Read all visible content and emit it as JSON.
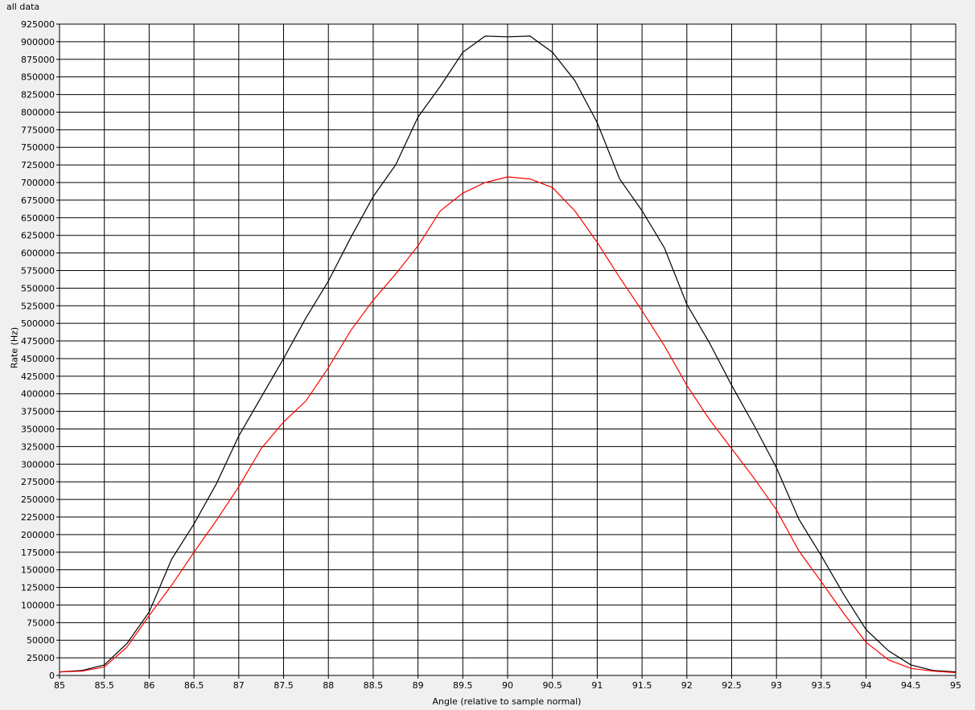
{
  "title": "all data",
  "chart_data": {
    "type": "line",
    "title": "all data",
    "xlabel": "Angle (relative to sample normal)",
    "ylabel": "Rate (Hz)",
    "xlim": [
      85,
      95
    ],
    "ylim": [
      0,
      925000
    ],
    "xticks": [
      85,
      85.5,
      86,
      86.5,
      87,
      87.5,
      88,
      88.5,
      89,
      89.5,
      90,
      90.5,
      91,
      91.5,
      92,
      92.5,
      93,
      93.5,
      94,
      94.5,
      95
    ],
    "yticks": [
      0,
      25000,
      50000,
      75000,
      100000,
      125000,
      150000,
      175000,
      200000,
      225000,
      250000,
      275000,
      300000,
      325000,
      350000,
      375000,
      400000,
      425000,
      450000,
      475000,
      500000,
      525000,
      550000,
      575000,
      600000,
      625000,
      650000,
      675000,
      700000,
      725000,
      750000,
      775000,
      800000,
      825000,
      850000,
      875000,
      900000,
      925000
    ],
    "grid": true,
    "background": "#ffffff",
    "series": [
      {
        "color": "#000000",
        "x": [
          85,
          85.25,
          85.5,
          85.75,
          86,
          86.25,
          86.5,
          86.75,
          87,
          87.25,
          87.5,
          87.75,
          88,
          88.25,
          88.5,
          88.75,
          89,
          89.25,
          89.5,
          89.75,
          90,
          90.25,
          90.5,
          90.75,
          91,
          91.25,
          91.5,
          91.75,
          92,
          92.25,
          92.5,
          92.75,
          93,
          93.25,
          93.5,
          93.75,
          94,
          94.25,
          94.5,
          94.75,
          95
        ],
        "y": [
          5000,
          7000,
          15000,
          45000,
          90000,
          165000,
          215000,
          272000,
          340000,
          395000,
          450000,
          508000,
          560000,
          622000,
          680000,
          725000,
          793000,
          837000,
          885000,
          908000,
          907000,
          908000,
          885000,
          845000,
          785000,
          705000,
          660000,
          607000,
          527000,
          473000,
          412000,
          355000,
          295000,
          222000,
          170000,
          115000,
          65000,
          35000,
          15000,
          7000,
          5000
        ]
      },
      {
        "color": "#ff0000",
        "x": [
          85,
          85.25,
          85.5,
          85.75,
          86,
          86.25,
          86.5,
          86.75,
          87,
          87.25,
          87.5,
          87.75,
          88,
          88.25,
          88.5,
          88.75,
          89,
          89.25,
          89.5,
          89.75,
          90,
          90.25,
          90.5,
          90.75,
          91,
          91.25,
          91.5,
          91.75,
          92,
          92.25,
          92.5,
          92.75,
          93,
          93.25,
          93.5,
          93.75,
          94,
          94.25,
          94.5,
          94.75,
          95
        ],
        "y": [
          5000,
          6000,
          12000,
          40000,
          85000,
          128000,
          175000,
          220000,
          268000,
          322000,
          360000,
          390000,
          437000,
          490000,
          533000,
          570000,
          610000,
          660000,
          685000,
          700000,
          708000,
          705000,
          693000,
          660000,
          615000,
          565000,
          518000,
          468000,
          412000,
          364000,
          322000,
          280000,
          235000,
          177000,
          133000,
          88000,
          47000,
          22000,
          10000,
          6000,
          4000
        ]
      }
    ]
  }
}
